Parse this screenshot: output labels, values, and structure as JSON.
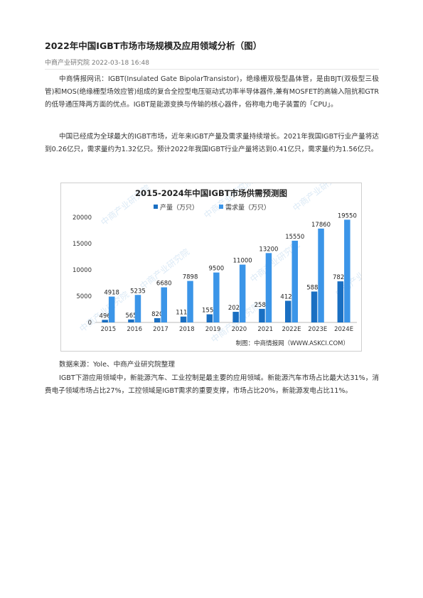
{
  "article": {
    "title": "2022年中国IGBT市场市场规模及应用领域分析（图）",
    "meta": "中商产业研究院 2022-03-18 16:48",
    "p1": "中商情报网讯：IGBT(Insulated Gate BipolarTransistor)，绝缘栅双极型晶体管，是由BJT(双极型三极管)和MOS(绝缘栅型场效应管)组成的复合全控型电压驱动式功率半导体器件,兼有MOSFET的高输入阻抗和GTR的低导通压降两方面的优点。IGBT是能源变换与传输的核心器件，俗称电力电子装置的「CPU」。",
    "p2": "中国已经成为全球最大的IGBT市场，近年来IGBT产量及需求量持续增长。2021年我国IGBT行业产量将达到0.26亿只，需求量约为1.32亿只。预计2022年我国IGBT行业产量将达到0.41亿只，需求量约为1.56亿只。",
    "source": "数据来源：Yole、中商产业研究院整理",
    "p4": "IGBT下游应用领域中，新能源汽车、工业控制是最主要的应用领域。新能源汽车市场占比最大达31%，消费电子领域市场占比27%，工控领域是IGBT需求的重要支撑，市场占比20%，新能源发电占比11%。"
  },
  "colors": {
    "series_production": "#1a6fc2",
    "series_demand": "#3b95e8",
    "watermark": "#dceaf6"
  },
  "chart_data": {
    "type": "bar",
    "title": "2015-2024年中国IGBT市场供需预测图",
    "categories": [
      "2015",
      "2016",
      "2017",
      "2018",
      "2019",
      "2020",
      "2021",
      "2022E",
      "2023E",
      "2024E"
    ],
    "series": [
      {
        "name": "产量（万只）",
        "values": [
          496,
          565,
          820,
          1115,
          1550,
          2020,
          2580,
          4120,
          5880,
          7820
        ]
      },
      {
        "name": "需求量（万只）",
        "values": [
          4918,
          5235,
          6680,
          7898,
          9500,
          11000,
          13200,
          15550,
          17860,
          19550
        ]
      }
    ],
    "y_ticks": [
      "0",
      "5000",
      "10000",
      "15000",
      "20000"
    ],
    "ylim": [
      0,
      20000
    ],
    "grid": false,
    "legend": "top-center",
    "credit": "制图：中商情报网（WWW.ASKCI.COM）",
    "watermark": "中商产业研究院"
  }
}
